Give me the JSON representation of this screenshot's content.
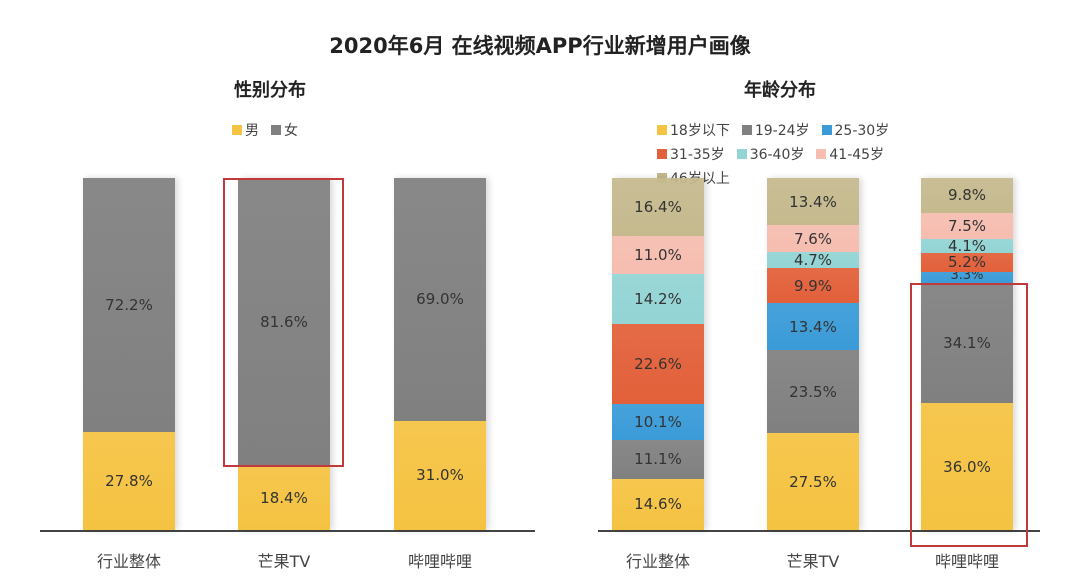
{
  "title": "2020年6月 在线视频APP行业新增用户画像",
  "chart_data": [
    {
      "type": "bar",
      "stacked": true,
      "title": "性别分布",
      "legend_position": "top",
      "categories": [
        "行业整体",
        "芒果TV",
        "哔哩哔哩"
      ],
      "series": [
        {
          "name": "男",
          "color": "#f5c342",
          "values": [
            27.8,
            18.4,
            31.0
          ]
        },
        {
          "name": "女",
          "color": "#808080",
          "values": [
            72.2,
            81.6,
            69.0
          ]
        }
      ],
      "ylim": [
        0,
        100
      ],
      "highlighted_category": "芒果TV"
    },
    {
      "type": "bar",
      "stacked": true,
      "title": "年龄分布",
      "legend_position": "top",
      "categories": [
        "行业整体",
        "芒果TV",
        "哔哩哔哩"
      ],
      "series": [
        {
          "name": "18岁以下",
          "color": "#f5c342",
          "values": [
            14.6,
            27.5,
            36.0
          ]
        },
        {
          "name": "19-24岁",
          "color": "#808080",
          "values": [
            11.1,
            23.5,
            34.1
          ]
        },
        {
          "name": "25-30岁",
          "color": "#3a9bd8",
          "values": [
            10.1,
            13.4,
            3.3
          ]
        },
        {
          "name": "31-35岁",
          "color": "#e2603a",
          "values": [
            22.6,
            9.9,
            5.2
          ]
        },
        {
          "name": "36-40岁",
          "color": "#93d4d4",
          "values": [
            14.2,
            4.7,
            4.1
          ]
        },
        {
          "name": "41-45岁",
          "color": "#f6bdb0",
          "values": [
            11.0,
            7.6,
            7.5
          ]
        },
        {
          "name": "46岁以上",
          "color": "#c5b98e",
          "values": [
            16.4,
            13.4,
            9.8
          ]
        }
      ],
      "ylim": [
        0,
        100
      ],
      "highlighted_category": "哔哩哔哩"
    }
  ]
}
